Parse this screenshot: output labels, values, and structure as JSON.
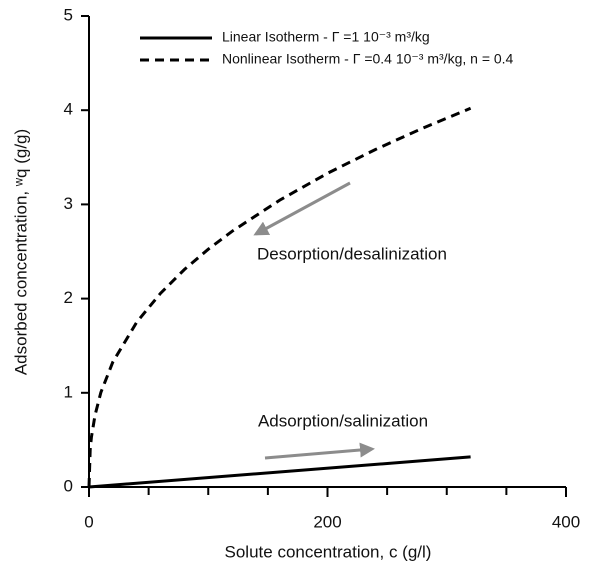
{
  "chart_data": {
    "type": "line",
    "x_label": "Solute concentration, c (g/l)",
    "y_label": "Adsorbed concentration, ʷq (g/g)",
    "xlim": [
      0,
      400
    ],
    "xticks": [
      0,
      200,
      400
    ],
    "xminor_ticks": [
      50,
      100,
      150,
      250,
      300,
      350
    ],
    "ylim": [
      0,
      5
    ],
    "yticks": [
      0,
      1,
      2,
      3,
      4,
      5
    ],
    "series": [
      {
        "name": "Linear Isotherm -  Γ =1 10⁻³ m³/kg",
        "color": "#000000",
        "dash": "solid",
        "x": [
          0,
          320
        ],
        "values": [
          0,
          0.32
        ]
      },
      {
        "name": "Nonlinear Isotherm -  Γ =0.4 10⁻³ m³/kg, n = 0.4",
        "color": "#000000",
        "dash": "dashed",
        "x": [
          0,
          1,
          2,
          5,
          10,
          20,
          40,
          60,
          80,
          100,
          120,
          160,
          200,
          240,
          280,
          320
        ],
        "values": [
          0,
          0.4,
          0.528,
          0.761,
          1.005,
          1.326,
          1.749,
          2.057,
          2.309,
          2.524,
          2.714,
          3.046,
          3.33,
          3.582,
          3.81,
          4.02
        ]
      }
    ],
    "annotations": [
      "Desorption/desalinization",
      "Adsorption/salinization"
    ]
  }
}
